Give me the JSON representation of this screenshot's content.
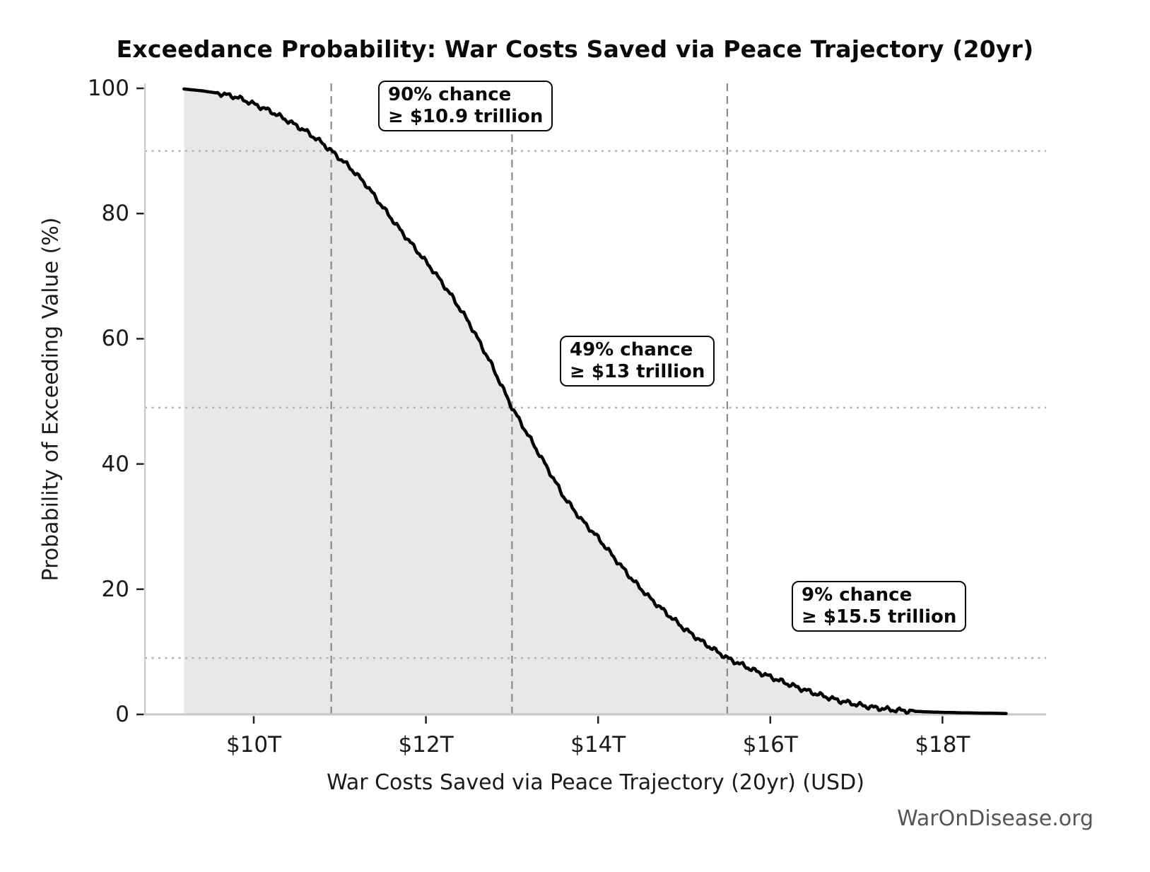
{
  "watermark": "WarOnDisease.org",
  "chart_data": {
    "type": "line",
    "title": "Exceedance Probability: War Costs Saved via Peace Trajectory (20yr)",
    "xlabel": "War Costs Saved via Peace Trajectory (20yr) (USD)",
    "ylabel": "Probability of Exceeding Value (%)",
    "x_unit": "trillion USD",
    "x_tick_values": [
      10,
      12,
      14,
      16,
      18
    ],
    "x_tick_labels": [
      "$10T",
      "$12T",
      "$14T",
      "$16T",
      "$18T"
    ],
    "y_tick_values": [
      0,
      20,
      40,
      60,
      80,
      100
    ],
    "y_tick_labels": [
      "0",
      "20",
      "40",
      "60",
      "80",
      "100"
    ],
    "xlim": [
      8.74,
      19.2
    ],
    "ylim": [
      0,
      100
    ],
    "grid": "off",
    "legend": "none",
    "curve_style": "thick black exceedance curve with light gray fill below",
    "series": [
      {
        "name": "Exceedance probability",
        "x": [
          9.19,
          9.4,
          9.6,
          9.8,
          10.0,
          10.2,
          10.4,
          10.6,
          10.8,
          10.9,
          11.1,
          11.3,
          11.5,
          11.7,
          11.9,
          12.1,
          12.3,
          12.5,
          12.75,
          13.0,
          13.2,
          13.4,
          13.6,
          13.8,
          14.0,
          14.2,
          14.4,
          14.6,
          14.8,
          15.0,
          15.25,
          15.5,
          15.8,
          16.0,
          16.2,
          16.4,
          16.6,
          16.8,
          17.0,
          17.2,
          17.4,
          17.6,
          17.8,
          18.0,
          18.2,
          18.4,
          18.6,
          18.74
        ],
        "y": [
          99.9,
          99.6,
          99.2,
          98.6,
          97.5,
          96.3,
          94.8,
          93.2,
          91.2,
          90.0,
          87.6,
          84.7,
          81.0,
          77.4,
          74.0,
          70.6,
          66.8,
          62.6,
          56.2,
          49.0,
          44.3,
          39.6,
          34.8,
          31.2,
          28.2,
          24.8,
          21.5,
          18.6,
          16.1,
          13.7,
          11.2,
          9.0,
          7.1,
          6.0,
          4.9,
          3.9,
          3.0,
          2.2,
          1.6,
          1.1,
          0.75,
          0.55,
          0.42,
          0.33,
          0.27,
          0.22,
          0.18,
          0.15
        ]
      }
    ],
    "annotations": [
      {
        "line1": "90% chance",
        "line2": "≥ $10.9 trillion",
        "x": 10.9,
        "prob": 90
      },
      {
        "line1": "49% chance",
        "line2": "≥ $13 trillion",
        "x": 13.0,
        "prob": 49
      },
      {
        "line1": "9% chance",
        "line2": "≥ $15.5 trillion",
        "x": 15.5,
        "prob": 9
      }
    ],
    "colors": {
      "curve": "#000000",
      "fill": "#e8e8e8",
      "dashed_line": "#8a8a8a",
      "dotted_line": "#b3b3b3",
      "spine": "#c9c9c9",
      "tick": "#222222",
      "watermark": "#555555"
    }
  }
}
